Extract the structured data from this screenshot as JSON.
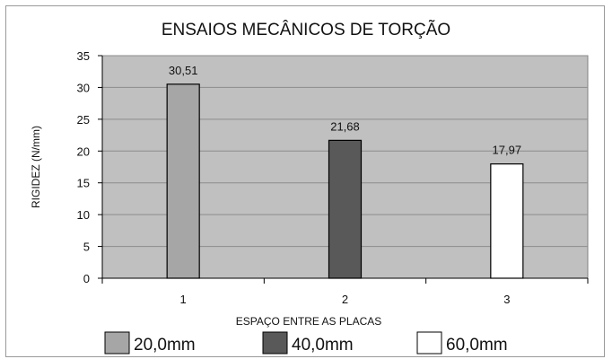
{
  "chart_data": {
    "type": "bar",
    "title": "ENSAIOS MECÂNICOS DE TORÇÃO",
    "xlabel": "ESPAÇO ENTRE AS PLACAS",
    "ylabel": "RIGIDEZ (N/mm)",
    "ylim": [
      0,
      35
    ],
    "yticks": [
      0,
      5,
      10,
      15,
      20,
      25,
      30,
      35
    ],
    "categories": [
      "1",
      "2",
      "3"
    ],
    "series": [
      {
        "name": "20,0mm",
        "color": "#a6a6a6",
        "values": [
          30.51,
          null,
          null
        ],
        "labels": [
          "30,51",
          "",
          ""
        ]
      },
      {
        "name": "40,0mm",
        "color": "#595959",
        "values": [
          null,
          21.68,
          null
        ],
        "labels": [
          "",
          "21,68",
          ""
        ]
      },
      {
        "name": "60,0mm",
        "color": "#ffffff",
        "values": [
          null,
          null,
          17.97
        ],
        "labels": [
          "",
          "",
          "17,97"
        ]
      }
    ],
    "plot_background": "#c0c0c0",
    "grid": true,
    "legend": "bottom"
  }
}
